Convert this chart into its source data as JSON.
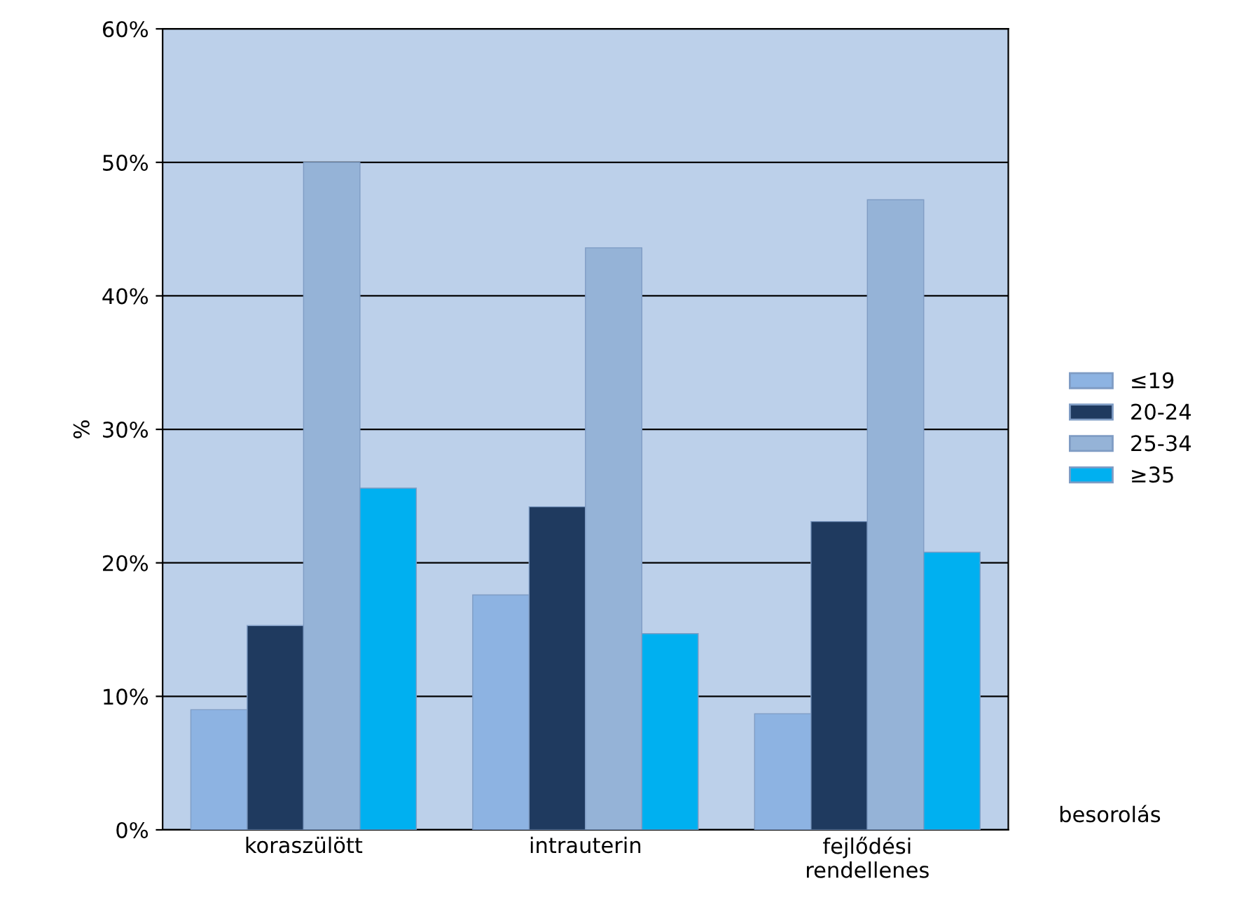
{
  "chart_data": {
    "type": "bar",
    "ylabel": "%",
    "xlabel": "besorolás",
    "categories": [
      "koraszülött",
      "intrauterin",
      "fejlődési\nrendellenes"
    ],
    "series": [
      {
        "name": "≤19",
        "color": "#8db3e2",
        "values": [
          9.0,
          17.6,
          8.7
        ]
      },
      {
        "name": "20-24",
        "color": "#1f3a5f",
        "values": [
          15.3,
          24.2,
          23.1
        ]
      },
      {
        "name": "25-34",
        "color": "#95b3d7",
        "values": [
          50.0,
          43.6,
          47.2
        ]
      },
      {
        "name": "≥35",
        "color": "#00b0f0",
        "values": [
          25.6,
          14.7,
          20.8
        ]
      }
    ],
    "ylim": [
      0,
      60
    ],
    "yticks": [
      {
        "value": 0,
        "label": "0%"
      },
      {
        "value": 10,
        "label": "10%"
      },
      {
        "value": 20,
        "label": "20%"
      },
      {
        "value": 30,
        "label": "30%"
      },
      {
        "value": 40,
        "label": "40%"
      },
      {
        "value": 50,
        "label": "50%"
      },
      {
        "value": 60,
        "label": "60%"
      }
    ],
    "grid": "y",
    "legend": "right"
  }
}
